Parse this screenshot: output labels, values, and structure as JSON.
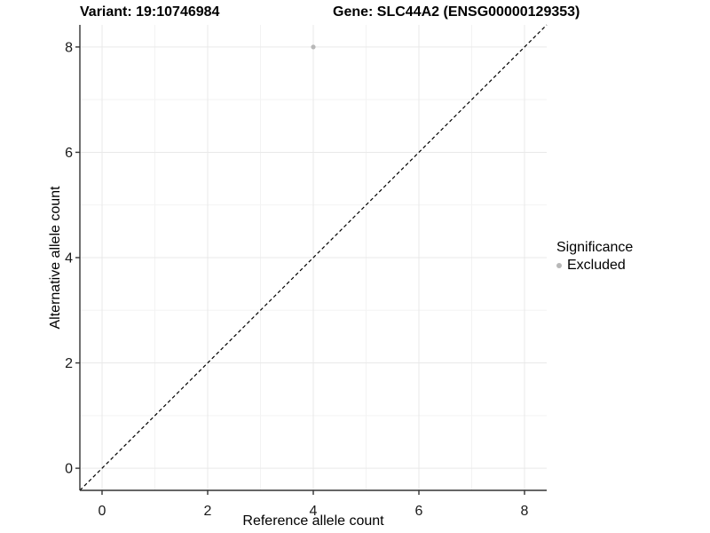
{
  "chart_data": {
    "type": "scatter",
    "title_left": "Variant: 19:10746984",
    "title_right": "Gene: SLC44A2 (ENSG00000129353)",
    "xlabel": "Reference allele count",
    "ylabel": "Alternative allele count",
    "xlim": [
      -0.42,
      8.42
    ],
    "ylim": [
      -0.42,
      8.42
    ],
    "xticks": [
      0,
      2,
      4,
      6,
      8
    ],
    "yticks": [
      0,
      2,
      4,
      6,
      8
    ],
    "xminor": [
      1,
      3,
      5,
      7
    ],
    "yminor": [
      1,
      3,
      5,
      7
    ],
    "grid": true,
    "points": [
      {
        "x": 4,
        "y": 8,
        "series": "Excluded"
      }
    ],
    "identity_line": {
      "style": "dashed",
      "slope": 1,
      "intercept": 0
    },
    "legend": {
      "title": "Significance",
      "position": "right",
      "items": [
        {
          "label": "Excluded",
          "color": "#b8b8b8"
        }
      ]
    },
    "colors": {
      "point": "#b8b8b8",
      "grid_major": "#e9e9e9",
      "grid_minor": "#f3f3f3",
      "axis": "#333333",
      "dashed_line": "#000000",
      "tick_text": "#1a1a1a"
    }
  }
}
